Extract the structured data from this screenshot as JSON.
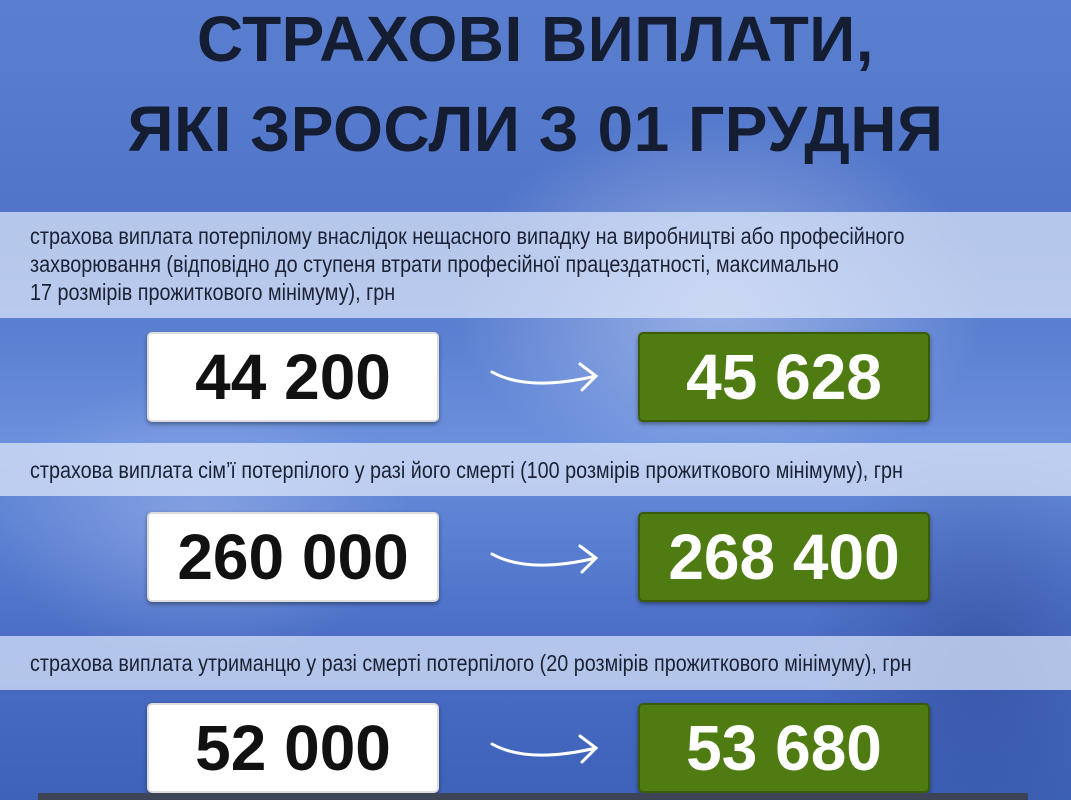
{
  "title": {
    "line1": "СТРАХОВІ ВИПЛАТИ,",
    "line2": "ЯКІ ЗРОСЛИ З 01 ГРУДНЯ"
  },
  "rows": [
    {
      "label_lines": [
        "страхова виплата потерпілому внаслідок нещасного випадку на виробництві або професійного",
        "захворювання (відповідно до ступеня втрати професійної працездатності, максимально",
        "17 розмірів прожиткового мінімуму), грн"
      ],
      "old_value": "44 200",
      "new_value": "45 628"
    },
    {
      "label_lines": [
        "страхова виплата сім’ї потерпілого у разі його смерті (100 розмірів прожиткового мінімуму), грн"
      ],
      "old_value": "260 000",
      "new_value": "268 400"
    },
    {
      "label_lines": [
        "страхова виплата утриманцю у разі смерті потерпілого (20 розмірів прожиткового мінімуму), грн"
      ],
      "old_value": "52 000",
      "new_value": "53 680"
    }
  ],
  "colors": {
    "new_value_bg": "#4f7c12",
    "old_value_bg": "#ffffff",
    "background": "#4f73c8",
    "title": "#151d33"
  },
  "icons": {
    "arrow": "curved-arrow-right-icon"
  }
}
